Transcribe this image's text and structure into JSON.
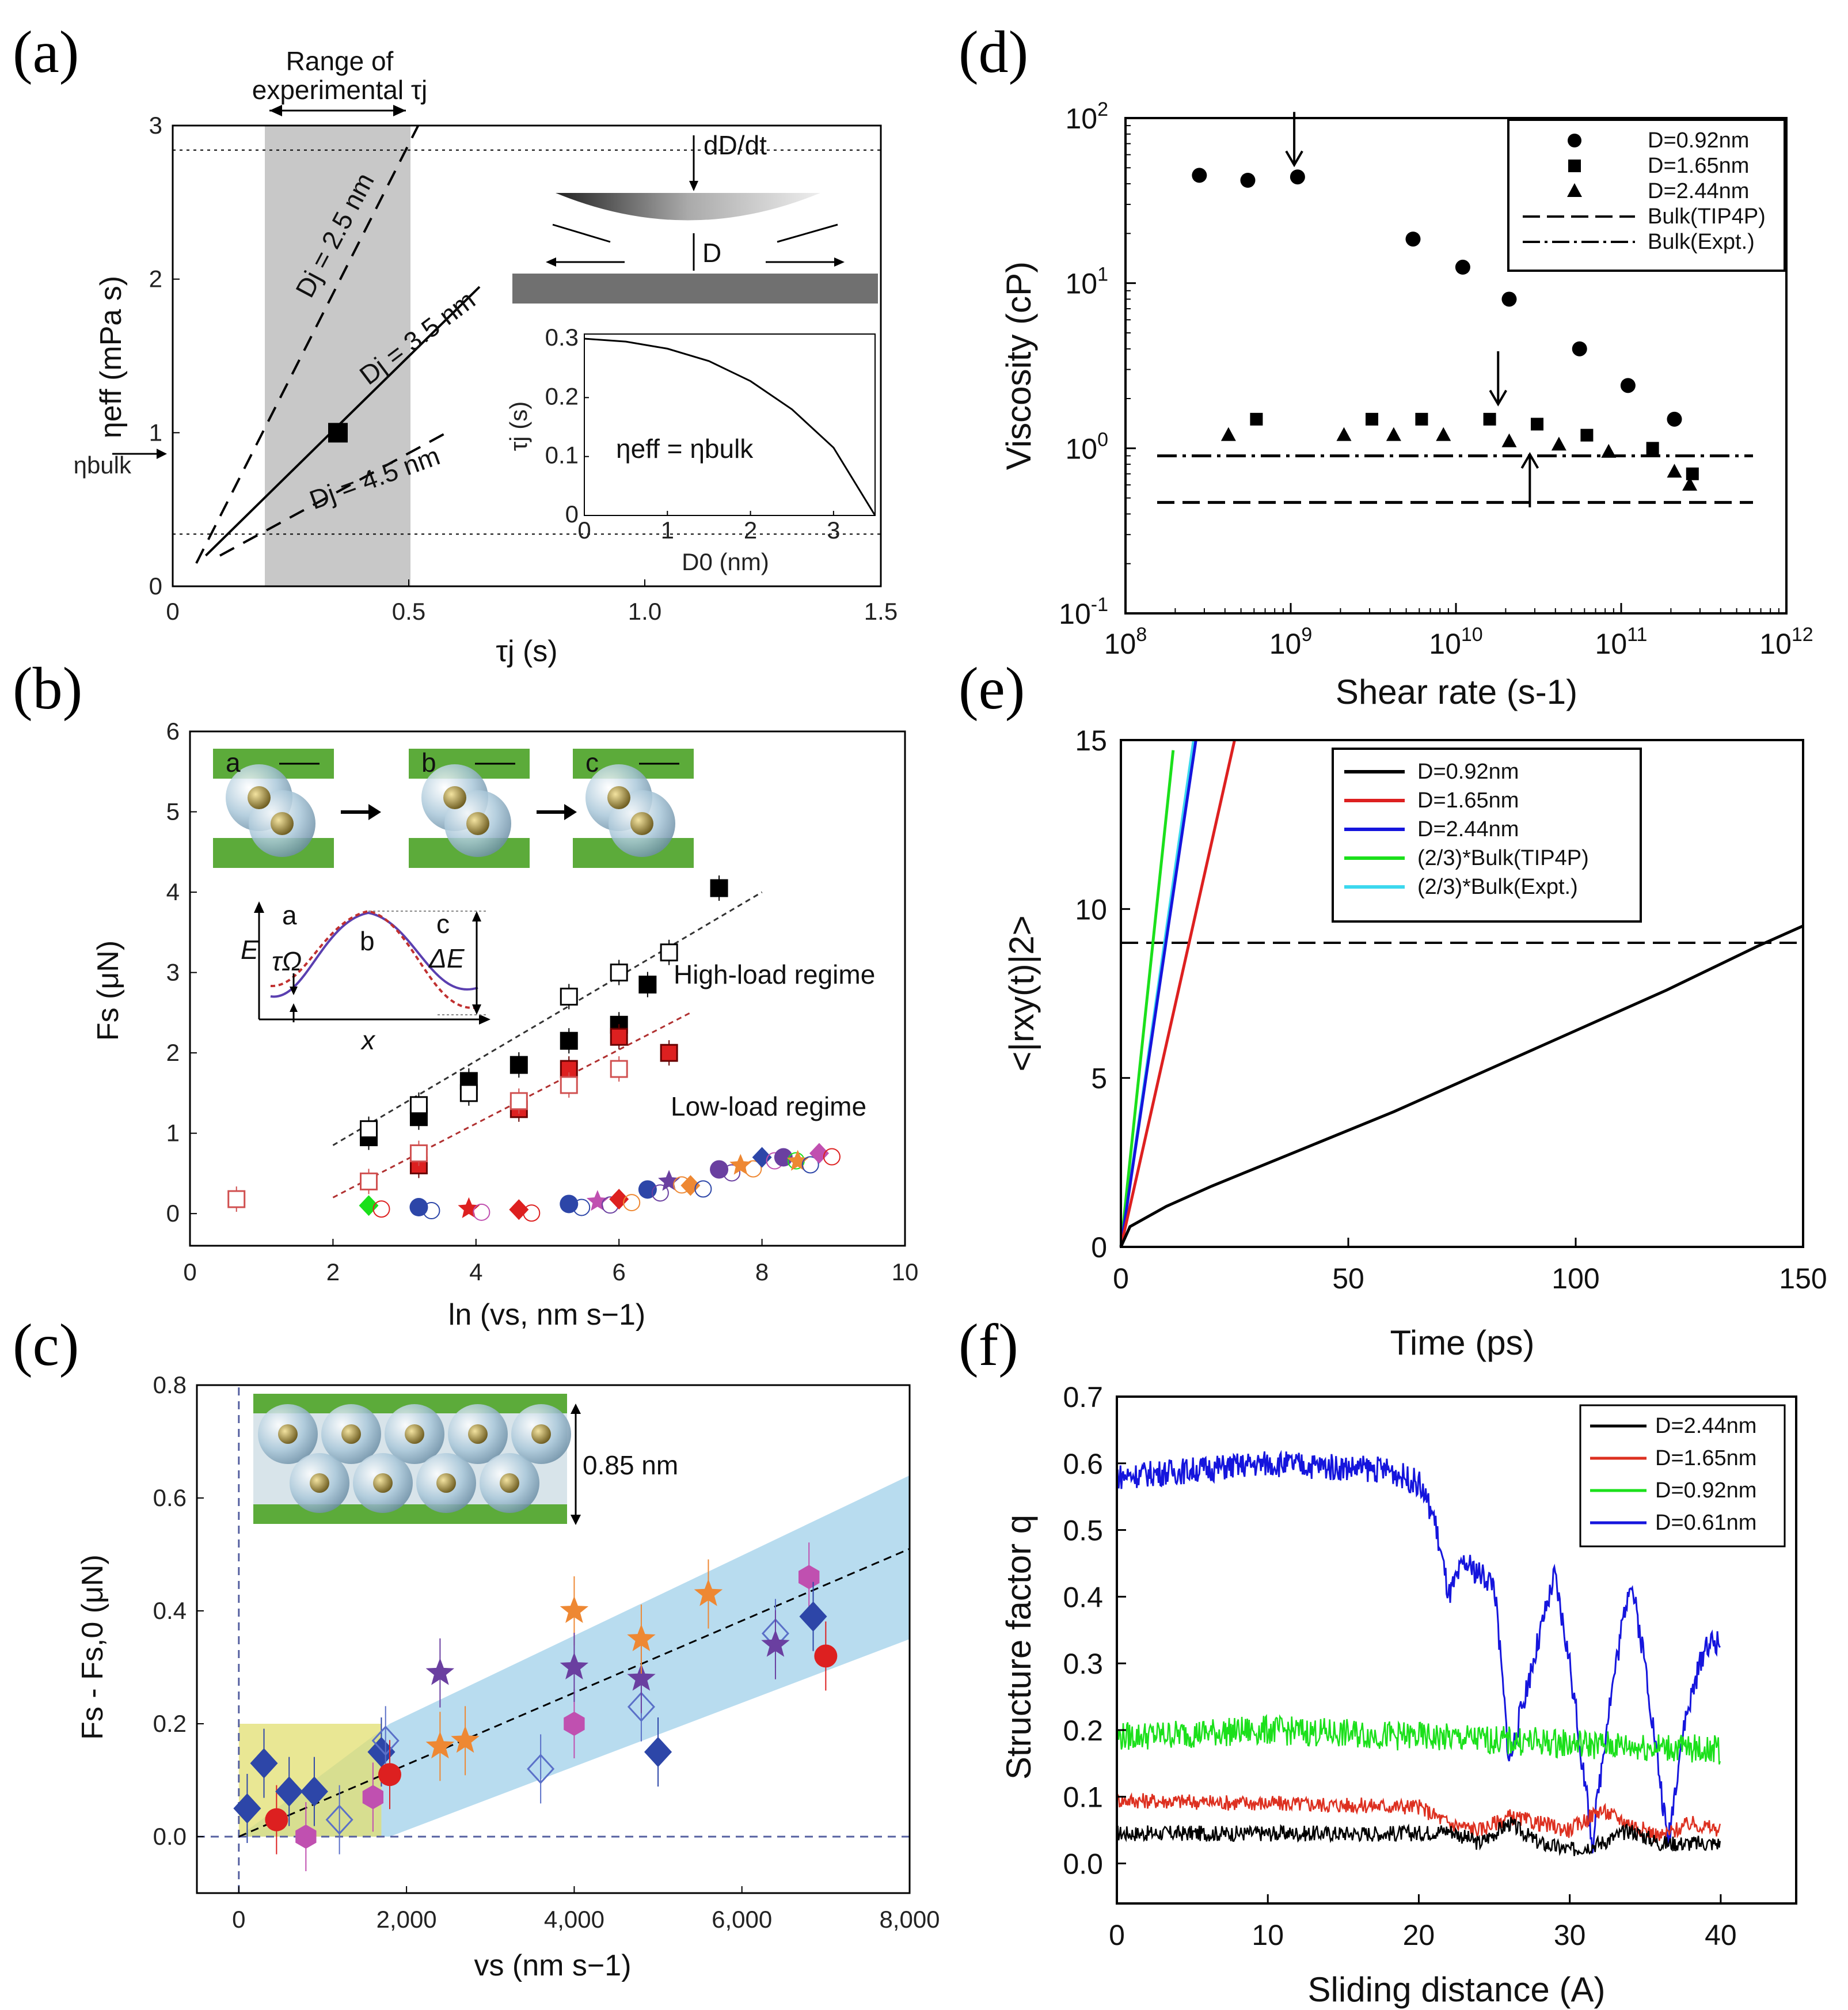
{
  "panels": {
    "a": {
      "label": "(a)",
      "range_label_1": "Range of",
      "range_label_2": "experimental τj",
      "ylabel": "ηeff (mPa s)",
      "xlabel": "τj (s)",
      "eta_bulk_label": "ηbulk",
      "inset_eq": "ηeff = ηbulk",
      "inset_ylabel": "τj (s)",
      "inset_xlabel": "D0 (nm)",
      "dDdt_label": "dD/dt",
      "D_label": "D"
    },
    "b": {
      "label": "(b)",
      "ylabel": "Fs (μN)",
      "xlabel": "ln (vs, nm s−1)",
      "high_label": "High-load regime",
      "low_label": "Low-load regime",
      "stage_labels": [
        "a",
        "b",
        "c"
      ],
      "energy_labels": {
        "E": "E",
        "x": "x",
        "a": "a",
        "b": "b",
        "c": "c",
        "tau_omega": "τΩ",
        "dE": "ΔE"
      }
    },
    "c": {
      "label": "(c)",
      "ylabel": "Fs - Fs,0 (μN)",
      "xlabel": "vs (nm s−1)",
      "inset_dim": "0.85 nm"
    },
    "d": {
      "label": "(d)"
    },
    "e": {
      "label": "(e)"
    },
    "f": {
      "label": "(f)"
    }
  },
  "colors": {
    "gray_band": "#c8c8c8",
    "blue_band": "#b8dcef",
    "yellow_box": "#e2df70",
    "green_plate": "#5cab3a",
    "black": "#000000",
    "red": "#dd2020",
    "blue": "#1515dd",
    "green": "#1be01b",
    "cyan": "#3cd8ee",
    "purple": "#6a3fa0",
    "orange": "#ee8833",
    "magenta": "#c050b0",
    "navy": "#2d46a8"
  },
  "chart_data": [
    {
      "id": "a",
      "type": "line",
      "title": "",
      "xlabel": "τj (s)",
      "ylabel": "ηeff (mPa s)",
      "xlim": [
        0,
        1.5
      ],
      "ylim": [
        0,
        3
      ],
      "xticks": [
        "0",
        "0.5",
        "1.0",
        "1.5"
      ],
      "yticks": [
        "0",
        "1",
        "2",
        "3"
      ],
      "shaded_range_x": [
        0.2,
        0.5
      ],
      "series": [
        {
          "name": "Dj = 2.5 nm",
          "style": "dashed",
          "x": [
            0.05,
            0.52
          ],
          "y": [
            0.15,
            3.0
          ]
        },
        {
          "name": "Dj = 3.5 nm",
          "style": "solid",
          "x": [
            0.07,
            0.65
          ],
          "y": [
            0.2,
            1.95
          ]
        },
        {
          "name": "Dj = 4.5 nm",
          "style": "dashed",
          "x": [
            0.1,
            0.58
          ],
          "y": [
            0.2,
            1.0
          ]
        }
      ],
      "hlines": [
        2.84,
        0.34
      ],
      "point": {
        "x": 0.35,
        "y": 1.0
      },
      "labels": [
        "Dj = 2.5 nm",
        "Dj = 3.5 nm",
        "Dj = 4.5 nm"
      ],
      "inset": {
        "xlabel": "D0 (nm)",
        "ylabel": "τj (s)",
        "xlim": [
          0,
          3.5
        ],
        "ylim": [
          0,
          0.3
        ],
        "xticks": [
          "0",
          "1",
          "2",
          "3"
        ],
        "yticks": [
          "0",
          "0.1",
          "0.2",
          "0.3"
        ],
        "x": [
          0,
          0.5,
          1.0,
          1.5,
          2.0,
          2.5,
          3.0,
          3.5
        ],
        "y": [
          0.3,
          0.295,
          0.283,
          0.262,
          0.228,
          0.18,
          0.115,
          0.0
        ]
      }
    },
    {
      "id": "b",
      "type": "scatter",
      "xlabel": "ln (vs, nm s−1)",
      "ylabel": "Fs (μN)",
      "xlim": [
        0,
        10
      ],
      "ylim": [
        0,
        6
      ],
      "xticks": [
        "0",
        "2",
        "4",
        "6",
        "8",
        "10"
      ],
      "yticks": [
        "0",
        "1",
        "2",
        "3",
        "4",
        "5",
        "6"
      ],
      "series": [
        {
          "name": "high-load filled black",
          "x": [
            2.5,
            3.2,
            3.9,
            4.6,
            5.3,
            6.0,
            6.4,
            7.4
          ],
          "y": [
            0.95,
            1.2,
            1.65,
            1.85,
            2.15,
            2.35,
            2.85,
            4.05
          ]
        },
        {
          "name": "high-load open black",
          "x": [
            2.5,
            3.2,
            3.9,
            5.3,
            6.0,
            6.7
          ],
          "y": [
            1.05,
            1.35,
            1.5,
            2.7,
            3.0,
            3.25
          ]
        },
        {
          "name": "high-load filled red",
          "x": [
            3.2,
            4.6,
            5.3,
            6.0,
            6.7
          ],
          "y": [
            0.6,
            1.3,
            1.8,
            2.2,
            2.0
          ]
        },
        {
          "name": "high-load open red",
          "x": [
            0.65,
            2.5,
            3.2,
            4.6,
            5.3,
            6.0
          ],
          "y": [
            0.18,
            0.4,
            0.75,
            1.4,
            1.6,
            1.8
          ]
        },
        {
          "name": "low-load scatter",
          "x": [
            2.5,
            3.2,
            3.9,
            4.6,
            5.3,
            5.7,
            6.0,
            6.4,
            6.7,
            7.0,
            7.4,
            7.7,
            8.0,
            8.3,
            8.5,
            8.8
          ],
          "y": [
            0.1,
            0.08,
            0.06,
            0.05,
            0.12,
            0.15,
            0.18,
            0.3,
            0.4,
            0.35,
            0.55,
            0.6,
            0.7,
            0.7,
            0.65,
            0.75
          ]
        }
      ],
      "fit_lines": [
        {
          "name": "high-load fit",
          "x": [
            2.0,
            8.0
          ],
          "y": [
            0.85,
            4.0
          ]
        },
        {
          "name": "low-load fit",
          "x": [
            2.0,
            7.0
          ],
          "y": [
            0.2,
            2.5
          ]
        }
      ],
      "annotations": [
        "High-load regime",
        "Low-load regime"
      ]
    },
    {
      "id": "c",
      "type": "scatter",
      "xlabel": "vs (nm s−1)",
      "ylabel": "Fs - Fs,0 (μN)",
      "xlim": [
        -500,
        8000
      ],
      "ylim": [
        -0.1,
        0.8
      ],
      "xticks": [
        "0",
        "2,000",
        "4,000",
        "6,000",
        "8,000"
      ],
      "yticks": [
        "0.0",
        "0.2",
        "0.4",
        "0.6",
        "0.8"
      ],
      "points": [
        {
          "x": 100,
          "y": 0.05,
          "m": "navy_diamond"
        },
        {
          "x": 300,
          "y": 0.13,
          "m": "navy_diamond"
        },
        {
          "x": 450,
          "y": 0.03,
          "m": "red_circle"
        },
        {
          "x": 600,
          "y": 0.08,
          "m": "navy_diamond"
        },
        {
          "x": 800,
          "y": 0.0,
          "m": "magenta_hex"
        },
        {
          "x": 900,
          "y": 0.08,
          "m": "navy_diamond"
        },
        {
          "x": 1200,
          "y": 0.03,
          "m": "open_diamond"
        },
        {
          "x": 1600,
          "y": 0.07,
          "m": "magenta_hex"
        },
        {
          "x": 1700,
          "y": 0.15,
          "m": "navy_diamond"
        },
        {
          "x": 1750,
          "y": 0.17,
          "m": "open_diamond"
        },
        {
          "x": 1800,
          "y": 0.11,
          "m": "red_circle"
        },
        {
          "x": 2400,
          "y": 0.29,
          "m": "purple_star"
        },
        {
          "x": 2400,
          "y": 0.16,
          "m": "orange_star"
        },
        {
          "x": 2700,
          "y": 0.17,
          "m": "orange_star"
        },
        {
          "x": 3600,
          "y": 0.12,
          "m": "open_diamond"
        },
        {
          "x": 4000,
          "y": 0.2,
          "m": "magenta_hex"
        },
        {
          "x": 4000,
          "y": 0.4,
          "m": "orange_star"
        },
        {
          "x": 4000,
          "y": 0.3,
          "m": "purple_star"
        },
        {
          "x": 4800,
          "y": 0.23,
          "m": "open_diamond"
        },
        {
          "x": 4800,
          "y": 0.28,
          "m": "purple_star"
        },
        {
          "x": 4800,
          "y": 0.35,
          "m": "orange_star"
        },
        {
          "x": 5000,
          "y": 0.15,
          "m": "navy_diamond"
        },
        {
          "x": 5600,
          "y": 0.43,
          "m": "orange_star"
        },
        {
          "x": 6400,
          "y": 0.36,
          "m": "open_diamond"
        },
        {
          "x": 6400,
          "y": 0.34,
          "m": "purple_star"
        },
        {
          "x": 6800,
          "y": 0.46,
          "m": "magenta_hex"
        },
        {
          "x": 6850,
          "y": 0.39,
          "m": "navy_diamond"
        },
        {
          "x": 7000,
          "y": 0.32,
          "m": "red_circle"
        }
      ],
      "fit_line": {
        "x": [
          0,
          8000
        ],
        "y": [
          0.0,
          0.51
        ]
      },
      "band_upper": {
        "x": [
          1800,
          8000
        ],
        "y": [
          0.2,
          0.64
        ]
      },
      "band_lower": {
        "x": [
          1800,
          8000
        ],
        "y": [
          0.0,
          0.35
        ]
      }
    },
    {
      "id": "d",
      "type": "scatter",
      "title": "",
      "xlabel": "Shear rate (s-1)",
      "ylabel": "Viscosity (cP)",
      "xscale": "log",
      "yscale": "log",
      "xlim": [
        100000000.0,
        1000000000000.0
      ],
      "ylim": [
        0.1,
        100
      ],
      "xticks": [
        {
          "b": "10",
          "e": "8"
        },
        {
          "b": "10",
          "e": "9"
        },
        {
          "b": "10",
          "e": "10"
        },
        {
          "b": "10",
          "e": "11"
        },
        {
          "b": "10",
          "e": "12"
        }
      ],
      "yticks": [
        {
          "b": "10",
          "e": "-1"
        },
        {
          "b": "10",
          "e": "0"
        },
        {
          "b": "10",
          "e": "1"
        },
        {
          "b": "10",
          "e": "2"
        }
      ],
      "series": [
        {
          "name": "D=0.92nm",
          "marker": "circle",
          "x": [
            280000000.0,
            550000000.0,
            1100000000.0,
            5500000000.0,
            11000000000.0,
            21000000000.0,
            56000000000.0,
            110000000000.0,
            210000000000.0
          ],
          "y": [
            45,
            42,
            44,
            18.5,
            12.5,
            8.0,
            4.0,
            2.4,
            1.5
          ]
        },
        {
          "name": "D=1.65nm",
          "marker": "square",
          "x": [
            620000000.0,
            3100000000.0,
            6200000000.0,
            16000000000.0,
            31000000000.0,
            62000000000.0,
            155000000000.0,
            270000000000.0
          ],
          "y": [
            1.5,
            1.5,
            1.5,
            1.5,
            1.4,
            1.2,
            1.0,
            0.7
          ]
        },
        {
          "name": "D=2.44nm",
          "marker": "triangle",
          "x": [
            420000000.0,
            2100000000.0,
            4200000000.0,
            8400000000.0,
            21000000000.0,
            42000000000.0,
            84000000000.0,
            210000000000.0,
            260000000000.0
          ],
          "y": [
            1.2,
            1.2,
            1.2,
            1.2,
            1.1,
            1.05,
            0.95,
            0.72,
            0.6
          ]
        }
      ],
      "hlines": [
        {
          "name": "Bulk(TIP4P)",
          "style": "dashed",
          "y": 0.47
        },
        {
          "name": "Bulk(Expt.)",
          "style": "dashdot",
          "y": 0.9
        }
      ],
      "arrows": [
        {
          "x": 1050000000.0,
          "y": 45,
          "dir": "down"
        },
        {
          "x": 18000000000.0,
          "y": 1.6,
          "dir": "down"
        },
        {
          "x": 28000000000.0,
          "y": 0.98,
          "dir": "up"
        }
      ],
      "legend": [
        "D=0.92nm",
        "D=1.65nm",
        "D=2.44nm",
        "Bulk(TIP4P)",
        "Bulk(Expt.)"
      ],
      "legend_position": "top-right"
    },
    {
      "id": "e",
      "type": "line",
      "xlabel": "Time (ps)",
      "ylabel": "<|rxy(t)|2>",
      "xlim": [
        0,
        150
      ],
      "ylim": [
        0,
        15
      ],
      "xticks": [
        "0",
        "50",
        "100",
        "150"
      ],
      "yticks": [
        "0",
        "5",
        "10",
        "15"
      ],
      "series": [
        {
          "name": "D=0.92nm",
          "color": "#000000",
          "x": [
            0,
            2,
            10,
            20,
            40,
            60,
            80,
            100,
            120,
            140,
            150
          ],
          "y": [
            0,
            0.6,
            1.2,
            1.8,
            2.9,
            4.0,
            5.2,
            6.4,
            7.6,
            8.9,
            9.5
          ]
        },
        {
          "name": "D=1.65nm",
          "color": "#dd2020",
          "x": [
            0,
            25
          ],
          "y": [
            0,
            15
          ]
        },
        {
          "name": "D=2.44nm",
          "color": "#1515dd",
          "x": [
            0,
            16.5
          ],
          "y": [
            0,
            15
          ]
        },
        {
          "name": "(2/3)*Bulk(TIP4P)",
          "color": "#1be01b",
          "x": [
            0,
            11.5
          ],
          "y": [
            0,
            14.7
          ]
        },
        {
          "name": "(2/3)*Bulk(Expt.)",
          "color": "#3cd8ee",
          "x": [
            0,
            16
          ],
          "y": [
            0,
            15
          ]
        }
      ],
      "hline": {
        "y": 9.0,
        "style": "dashed"
      },
      "legend": [
        "D=0.92nm",
        "D=1.65nm",
        "D=2.44nm",
        "(2/3)*Bulk(TIP4P)",
        "(2/3)*Bulk(Expt.)"
      ],
      "legend_position": "top-left"
    },
    {
      "id": "f",
      "type": "line",
      "xlabel": "Sliding distance (A)",
      "ylabel": "Structure factor q",
      "xlim": [
        0,
        45
      ],
      "ylim": [
        -0.06,
        0.7
      ],
      "xticks": [
        "0",
        "10",
        "20",
        "30",
        "40"
      ],
      "yticks": [
        "0.0",
        "0.1",
        "0.2",
        "0.3",
        "0.4",
        "0.5",
        "0.6",
        "0.7"
      ],
      "series": [
        {
          "name": "D=2.44nm",
          "color": "#000000",
          "x": [
            0,
            10,
            20,
            22,
            24,
            26,
            28,
            30,
            32,
            34,
            36,
            38,
            40
          ],
          "y": [
            0.045,
            0.045,
            0.045,
            0.05,
            0.03,
            0.06,
            0.03,
            0.02,
            0.03,
            0.05,
            0.03,
            0.03,
            0.03
          ]
        },
        {
          "name": "D=1.65nm",
          "color": "#dd3020",
          "x": [
            0,
            10,
            20,
            22,
            24,
            26,
            28,
            30,
            32,
            34,
            36,
            38,
            40
          ],
          "y": [
            0.095,
            0.09,
            0.085,
            0.06,
            0.05,
            0.07,
            0.06,
            0.05,
            0.08,
            0.06,
            0.04,
            0.06,
            0.05
          ]
        },
        {
          "name": "D=0.92nm",
          "color": "#1be01b",
          "x": [
            0,
            10,
            20,
            30,
            40
          ],
          "y": [
            0.19,
            0.2,
            0.19,
            0.18,
            0.17
          ]
        },
        {
          "name": "D=0.61nm",
          "color": "#1515dd",
          "x": [
            0,
            10,
            18,
            20,
            21,
            22,
            23,
            25,
            26,
            27,
            29,
            30,
            31.5,
            32.5,
            34,
            35,
            36.5,
            37.5,
            39,
            40
          ],
          "y": [
            0.58,
            0.6,
            0.59,
            0.57,
            0.52,
            0.4,
            0.45,
            0.42,
            0.15,
            0.25,
            0.43,
            0.3,
            0.03,
            0.22,
            0.43,
            0.3,
            0.03,
            0.2,
            0.33,
            0.33
          ]
        }
      ],
      "legend": [
        "D=2.44nm",
        "D=1.65nm",
        "D=0.92nm",
        "D=0.61nm"
      ],
      "legend_position": "top-right"
    }
  ]
}
